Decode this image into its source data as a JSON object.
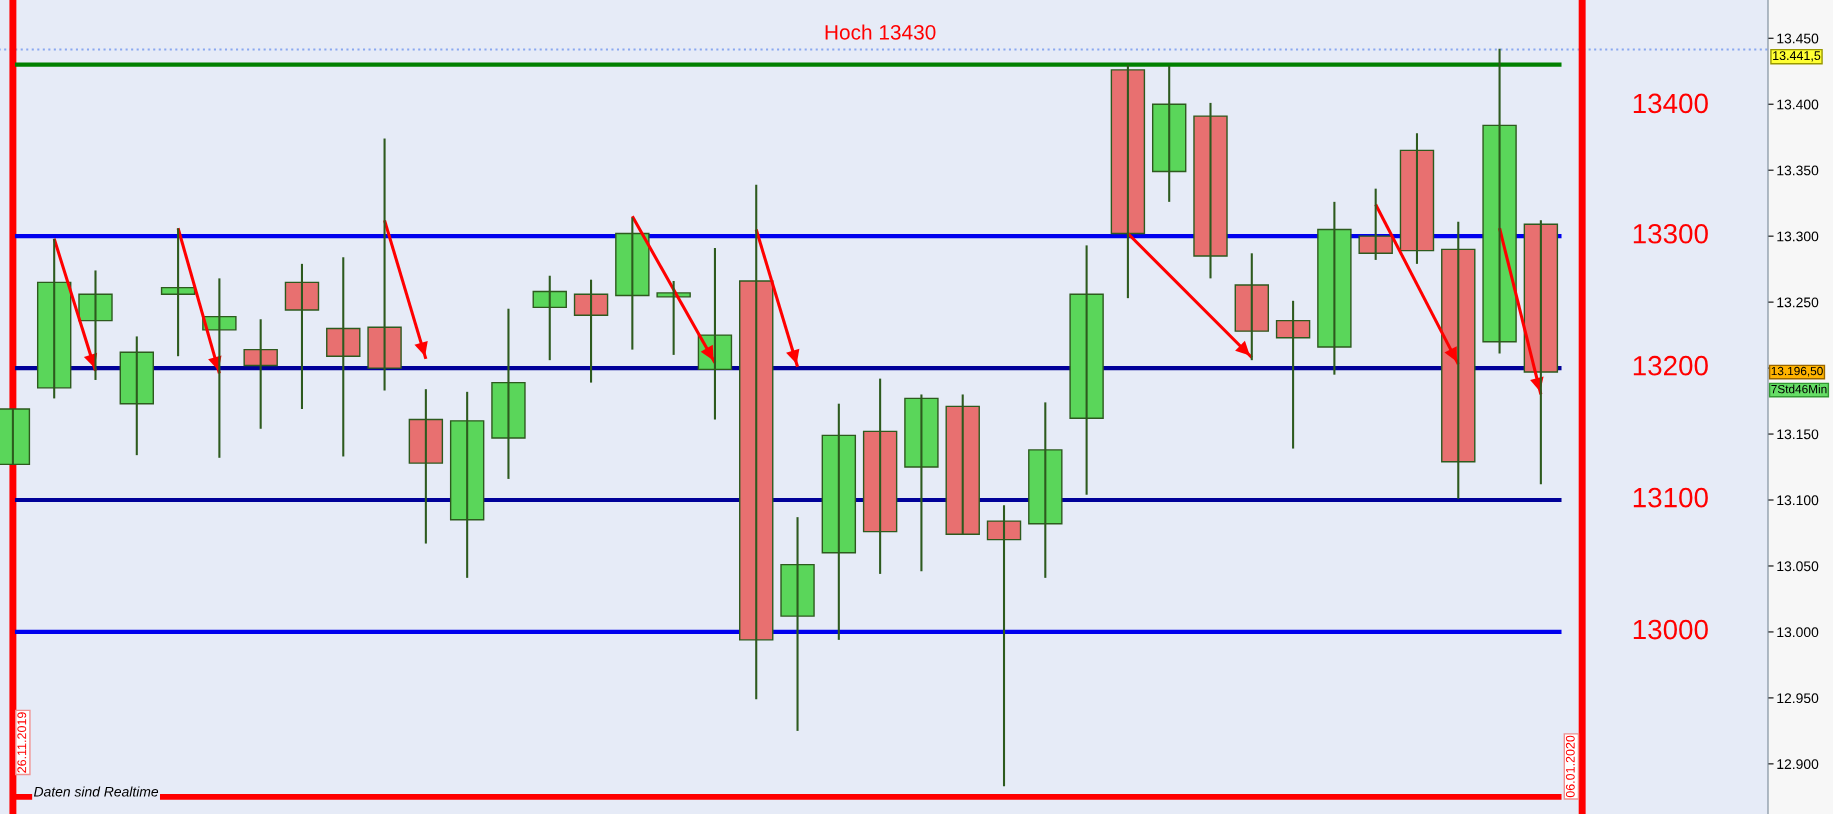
{
  "chart_data": {
    "type": "candlestick",
    "title": "Hoch 13430",
    "categories": [
      null,
      null,
      null,
      null,
      null,
      null,
      null,
      null,
      null,
      null,
      null,
      null,
      null,
      null,
      null,
      null,
      null,
      null,
      null,
      null,
      null,
      null,
      null,
      null,
      null,
      null,
      null,
      null,
      null,
      null,
      null,
      null,
      null,
      null,
      null,
      null,
      null,
      null,
      null,
      null,
      null,
      null,
      null
    ],
    "ohlc": [
      [
        13127,
        13169,
        13127,
        13169
      ],
      [
        13185,
        13298,
        13177,
        13265
      ],
      [
        13236,
        13274,
        13191,
        13256
      ],
      [
        13173,
        13224,
        13134,
        13212
      ],
      [
        13256,
        13306,
        13209,
        13261
      ],
      [
        13229,
        13268,
        13132,
        13239
      ],
      [
        13214,
        13237,
        13154,
        13202
      ],
      [
        13265,
        13279,
        13169,
        13244
      ],
      [
        13230,
        13284,
        13133,
        13209
      ],
      [
        13231,
        13374,
        13183,
        13200
      ],
      [
        13161,
        13184,
        13067,
        13128
      ],
      [
        13085,
        13182,
        13041,
        13160
      ],
      [
        13147,
        13245,
        13116,
        13189
      ],
      [
        13246,
        13270,
        13206,
        13258
      ],
      [
        13256,
        13267,
        13189,
        13240
      ],
      [
        13255,
        13314,
        13214,
        13302
      ],
      [
        13254,
        13266,
        13210,
        13257
      ],
      [
        13199,
        13291,
        13161,
        13225
      ],
      [
        13266,
        13339,
        12949,
        12994
      ],
      [
        13012,
        13087,
        12925,
        13051
      ],
      [
        13060,
        13173,
        12994,
        13149
      ],
      [
        13152,
        13192,
        13044,
        13076
      ],
      [
        13125,
        13180,
        13046,
        13177
      ],
      [
        13171,
        13180,
        13074,
        13074
      ],
      [
        13084,
        13096,
        12883,
        13070
      ],
      [
        13082,
        13174,
        13041,
        13138
      ],
      [
        13162,
        13293,
        13104,
        13256
      ],
      [
        13426,
        13430,
        13253,
        13302
      ],
      [
        13349,
        13429,
        13326,
        13400
      ],
      [
        13391,
        13401,
        13268,
        13285
      ],
      [
        13263,
        13287,
        13206,
        13228
      ],
      [
        13236,
        13251,
        13139,
        13223
      ],
      [
        13216,
        13326,
        13195,
        13305
      ],
      [
        13300,
        13336,
        13282,
        13287
      ],
      [
        13365,
        13378,
        13279,
        13289
      ],
      [
        13290,
        13311,
        13101,
        13129
      ],
      [
        13220,
        13442,
        13211,
        13384
      ],
      [
        13309,
        13312,
        13112,
        13197
      ],
      null,
      null,
      null,
      null,
      null
    ],
    "series": [
      {
        "type": "line",
        "color": "#ff0000",
        "values": [
          null,
          13298,
          13198,
          null,
          null,
          null,
          null,
          null,
          null,
          null,
          null,
          null,
          null,
          null,
          null,
          null,
          null,
          null,
          null,
          null,
          null,
          null,
          null,
          null,
          null,
          null,
          null,
          null,
          null,
          null,
          null,
          null,
          null,
          null,
          null,
          null,
          null,
          null,
          null,
          null,
          null,
          null,
          null
        ]
      },
      {
        "type": "line",
        "color": "#ff0000",
        "values": [
          null,
          null,
          null,
          null,
          13306,
          13196,
          null,
          null,
          null,
          null,
          null,
          null,
          null,
          null,
          null,
          null,
          null,
          null,
          null,
          null,
          null,
          null,
          null,
          null,
          null,
          null,
          null,
          null,
          null,
          null,
          null,
          null,
          null,
          null,
          null,
          null,
          null,
          null,
          null,
          null,
          null,
          null,
          null
        ]
      },
      {
        "type": "line",
        "color": "#ff0000",
        "values": [
          null,
          null,
          null,
          null,
          null,
          null,
          null,
          null,
          null,
          13312,
          13207,
          null,
          null,
          null,
          null,
          null,
          null,
          null,
          null,
          null,
          null,
          null,
          null,
          null,
          null,
          null,
          null,
          null,
          null,
          null,
          null,
          null,
          null,
          null,
          null,
          null,
          null,
          null,
          null,
          null,
          null,
          null,
          null
        ]
      },
      {
        "type": "line",
        "color": "#ff0000",
        "values": [
          null,
          null,
          null,
          null,
          null,
          null,
          null,
          null,
          null,
          null,
          null,
          null,
          null,
          null,
          null,
          13315,
          null,
          13204,
          null,
          null,
          null,
          null,
          null,
          null,
          null,
          null,
          null,
          null,
          null,
          null,
          null,
          null,
          null,
          null,
          null,
          null,
          null,
          null,
          null,
          null,
          null,
          null,
          null
        ]
      },
      {
        "type": "line",
        "color": "#ff0000",
        "values": [
          null,
          null,
          null,
          null,
          null,
          null,
          null,
          null,
          null,
          null,
          null,
          null,
          null,
          null,
          null,
          null,
          null,
          null,
          13305,
          13201,
          null,
          null,
          null,
          null,
          null,
          null,
          null,
          null,
          null,
          null,
          null,
          null,
          null,
          null,
          null,
          null,
          null,
          null,
          null,
          null,
          null,
          null,
          null
        ]
      },
      {
        "type": "line",
        "color": "#ff0000",
        "values": [
          null,
          null,
          null,
          null,
          null,
          null,
          null,
          null,
          null,
          null,
          null,
          null,
          null,
          null,
          null,
          null,
          null,
          null,
          null,
          null,
          null,
          null,
          null,
          null,
          null,
          null,
          null,
          13302,
          null,
          null,
          13208,
          null,
          null,
          null,
          null,
          null,
          null,
          null,
          null,
          null,
          null,
          null,
          null
        ]
      },
      {
        "type": "line",
        "color": "#ff0000",
        "values": [
          null,
          null,
          null,
          null,
          null,
          null,
          null,
          null,
          null,
          null,
          null,
          null,
          null,
          null,
          null,
          null,
          null,
          null,
          null,
          null,
          null,
          null,
          null,
          null,
          null,
          null,
          null,
          null,
          null,
          null,
          null,
          null,
          null,
          13324,
          null,
          13203,
          null,
          null,
          null,
          null,
          null,
          null,
          null
        ]
      },
      {
        "type": "line",
        "color": "#ff0000",
        "values": [
          null,
          null,
          null,
          null,
          null,
          null,
          null,
          null,
          null,
          null,
          null,
          null,
          null,
          null,
          null,
          null,
          null,
          null,
          null,
          null,
          null,
          null,
          null,
          null,
          null,
          null,
          null,
          null,
          null,
          null,
          null,
          null,
          null,
          null,
          null,
          null,
          13306,
          13180,
          null,
          null,
          null,
          null,
          null
        ]
      }
    ],
    "ylim": [
      12862,
      13479
    ],
    "yticks": [
      {
        "value": 12900,
        "label": "12.900"
      },
      {
        "value": 12950,
        "label": "12.950"
      },
      {
        "value": 13000,
        "label": "13.000"
      },
      {
        "value": 13050,
        "label": "13.050"
      },
      {
        "value": 13100,
        "label": "13.100"
      },
      {
        "value": 13150,
        "label": "13.150"
      },
      {
        "value": 13200,
        "label": null
      },
      {
        "value": 13250,
        "label": "13.250"
      },
      {
        "value": 13300,
        "label": "13.300"
      },
      {
        "value": 13350,
        "label": "13.350"
      },
      {
        "value": 13400,
        "label": "13.400"
      },
      {
        "value": 13450,
        "label": "13.450"
      }
    ],
    "tick_labels": "y",
    "ref_lines": [
      {
        "axis": "y",
        "value": 13430,
        "color": "#008000"
      },
      {
        "axis": "y",
        "value": 13300,
        "label": "13300",
        "color": "#0000ee"
      },
      {
        "axis": "y",
        "value": 13200,
        "label": "13200",
        "color": "#000099"
      },
      {
        "axis": "y",
        "value": 13100,
        "label": "13100",
        "color": "#000099"
      },
      {
        "axis": "y",
        "value": 13000,
        "label": "13000",
        "color": "#0000ee"
      },
      {
        "axis": "y",
        "value": 12875,
        "color": "#ff0000"
      },
      {
        "axis": "y",
        "value": 13441.5,
        "label": "13.441,5",
        "color": "#8aa8f0",
        "line_style": "dotted"
      }
    ],
    "annotations": [
      "13.196,50",
      "7Std46Min",
      "Daten sind Realtime",
      "26.11.2019",
      "06.01.2020",
      "13400"
    ]
  }
}
